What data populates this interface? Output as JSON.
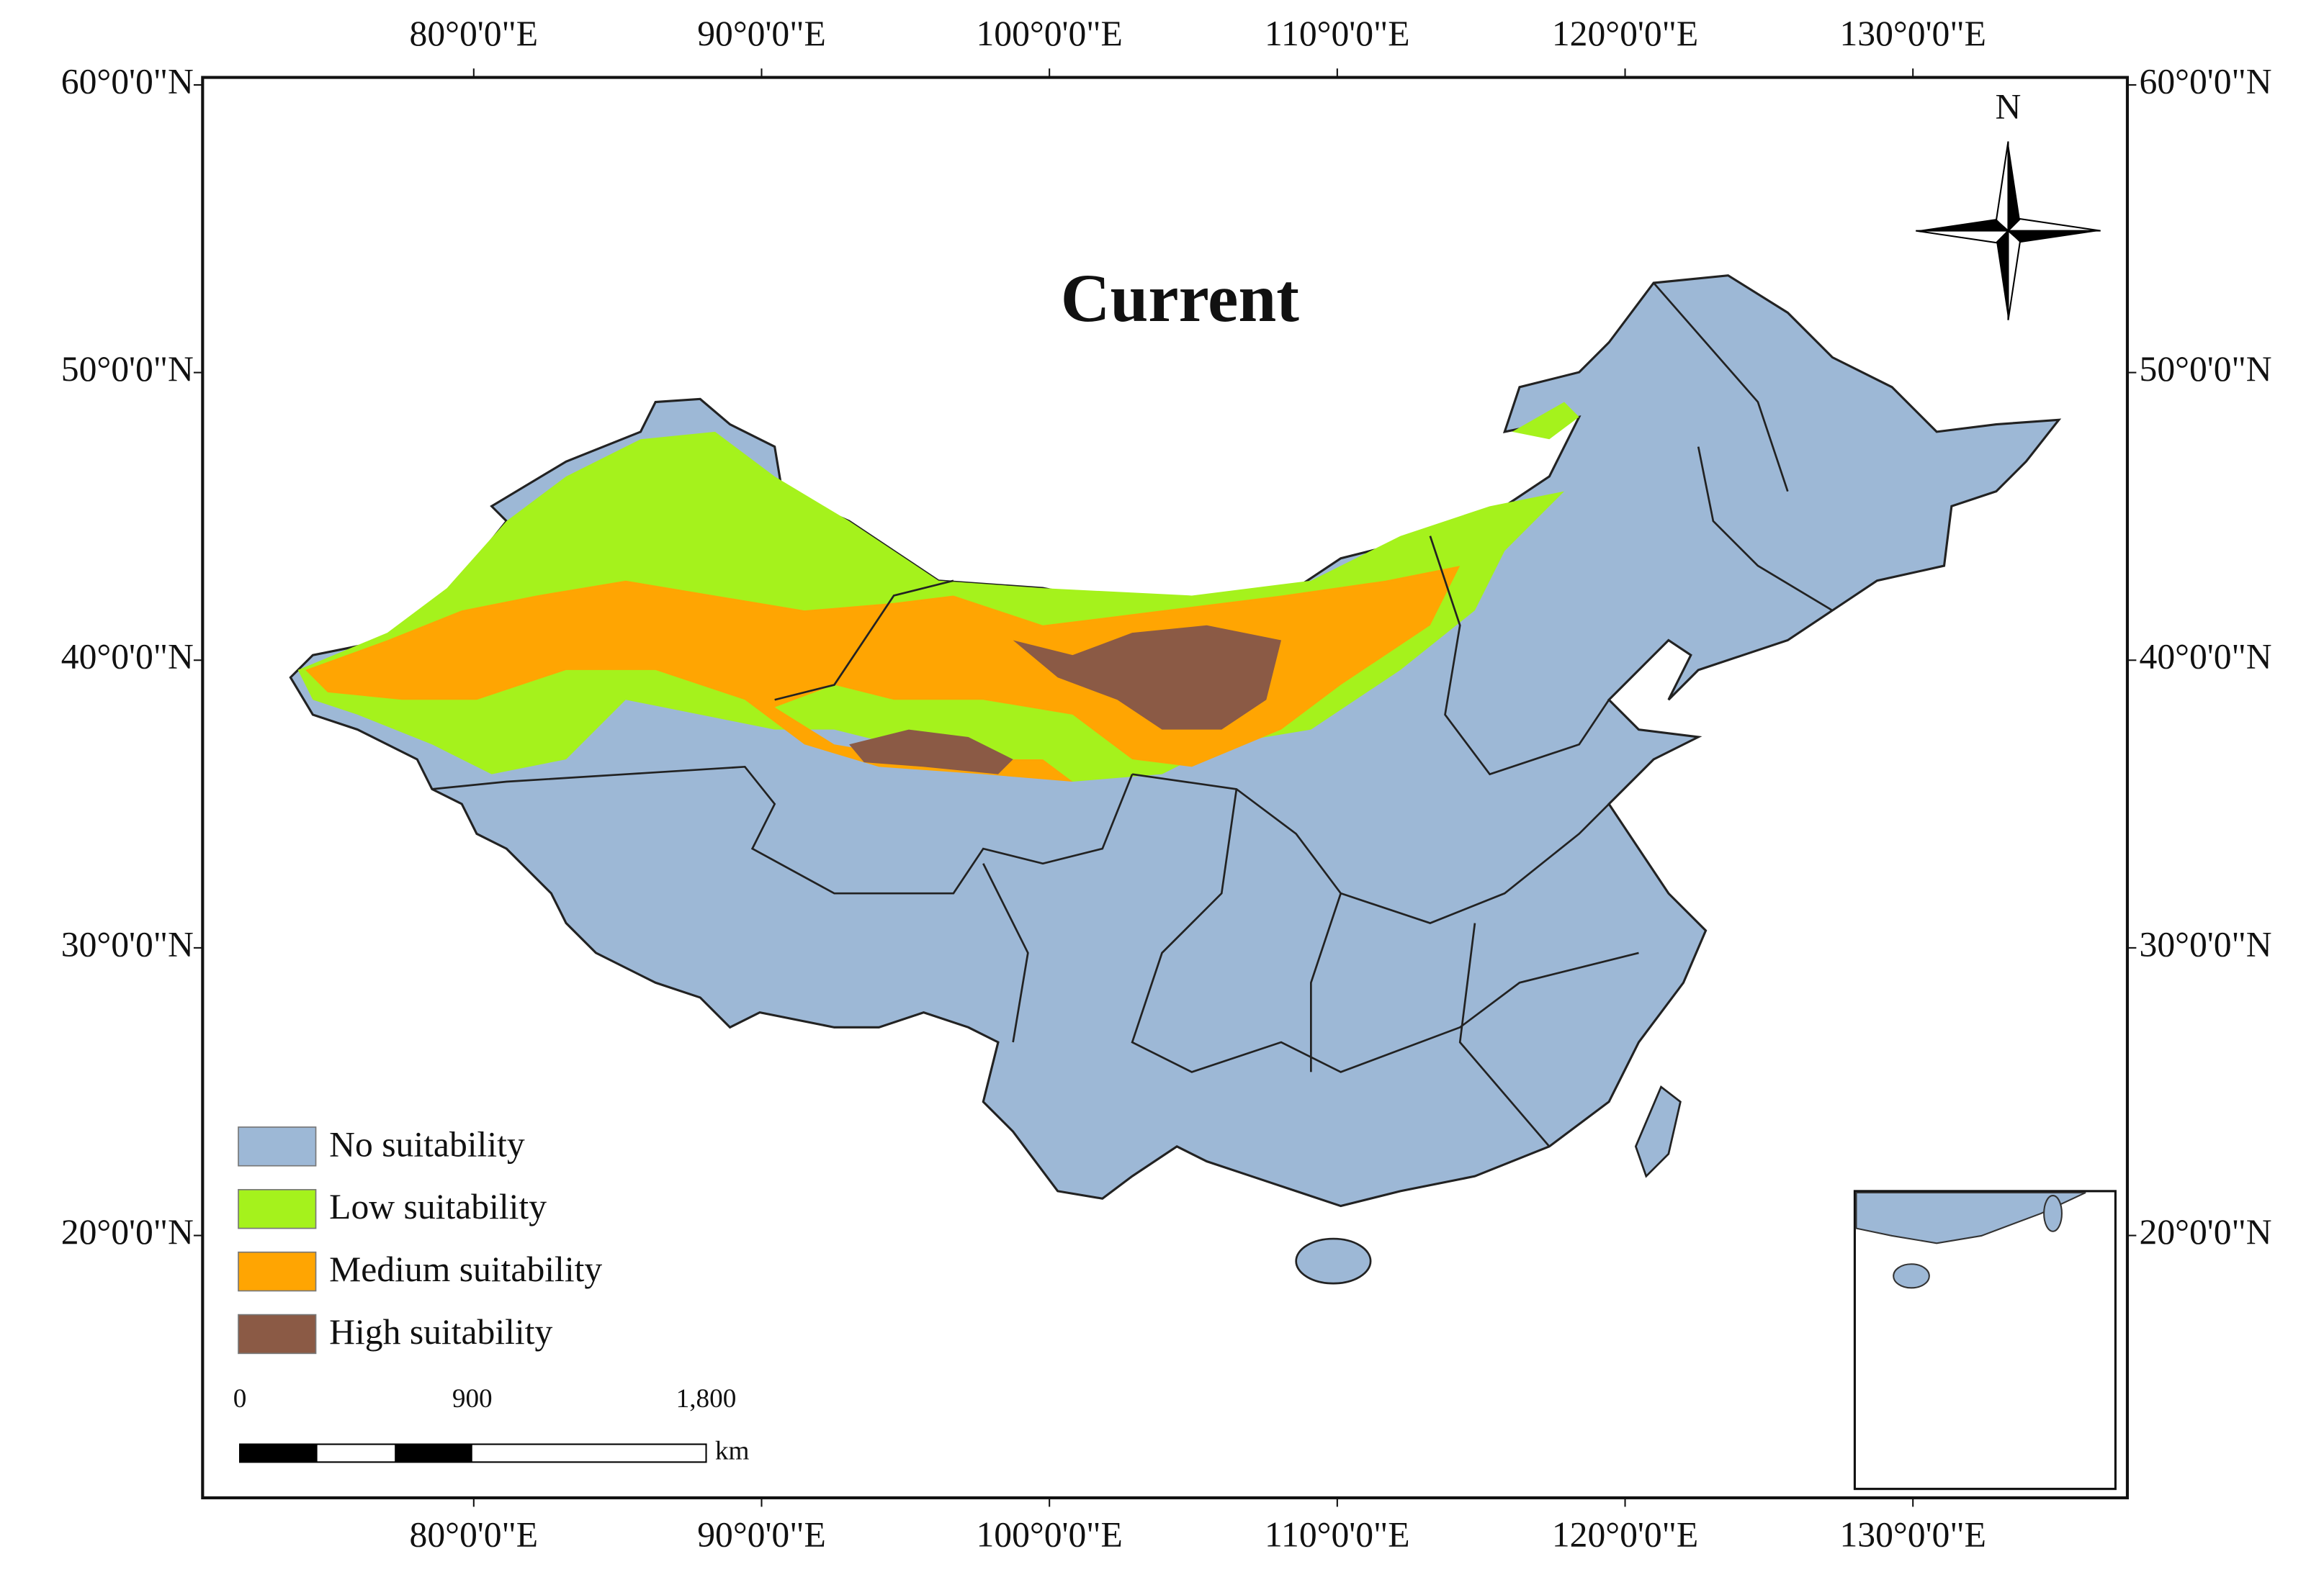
{
  "map": {
    "title": "Current",
    "north_label": "N",
    "xlim": [
      70.58,
      137.45
    ],
    "ylim": [
      10.88,
      60.26
    ],
    "xticks": [
      {
        "value": 80,
        "label": "80°0'0\"E"
      },
      {
        "value": 90,
        "label": "90°0'0\"E"
      },
      {
        "value": 100,
        "label": "100°0'0\"E"
      },
      {
        "value": 110,
        "label": "110°0'0\"E"
      },
      {
        "value": 120,
        "label": "120°0'0\"E"
      },
      {
        "value": 130,
        "label": "130°0'0\"E"
      }
    ],
    "yticks": [
      {
        "value": 60,
        "label": "60°0'0\"N"
      },
      {
        "value": 50,
        "label": "50°0'0\"N"
      },
      {
        "value": 40,
        "label": "40°0'0\"N"
      },
      {
        "value": 30,
        "label": "30°0'0\"N"
      },
      {
        "value": 20,
        "label": "20°0'0\"N"
      }
    ],
    "legend": [
      {
        "label": "No suitability",
        "color": "#9db8d6"
      },
      {
        "label": "Low suitability",
        "color": "#a5f21c"
      },
      {
        "label": "Medium suitability",
        "color": "#ffa502"
      },
      {
        "label": "High suitability",
        "color": "#8b5a45"
      }
    ],
    "scale_bar": {
      "labels": [
        "0",
        "900",
        "1,800"
      ],
      "unit": "km"
    }
  }
}
